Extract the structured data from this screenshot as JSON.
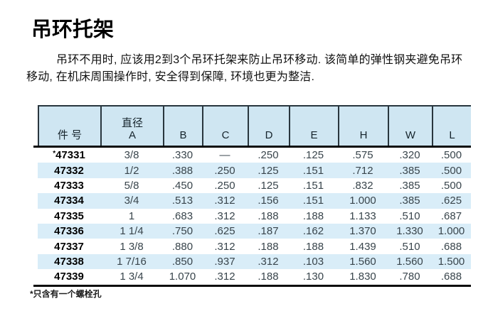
{
  "page": {
    "title": "吊环托架",
    "intro": "吊环不用时, 应该用2到3个吊环托架来防止吊环移动. 该简单的弹性钢夹避免吊环移动, 在机床周围操作时, 安全得到保障, 环境也更为整洁.",
    "footnote": "*只含有一个螺栓孔"
  },
  "colors": {
    "header_bg": "#cfe6f2",
    "stripe_bg": "#d9edf8",
    "rule_dark": "#29363e",
    "thick_rule": "#0b0b0b"
  },
  "table": {
    "columns": [
      {
        "lines": [
          "件 号"
        ]
      },
      {
        "lines": [
          "直径",
          "A"
        ]
      },
      {
        "lines": [
          "B"
        ]
      },
      {
        "lines": [
          "C"
        ]
      },
      {
        "lines": [
          "D"
        ]
      },
      {
        "lines": [
          "E"
        ]
      },
      {
        "lines": [
          "H"
        ]
      },
      {
        "lines": [
          "W"
        ]
      },
      {
        "lines": [
          "L"
        ]
      }
    ],
    "rows": [
      {
        "star": "*",
        "part": "47331",
        "values": [
          "3/8",
          ".330",
          "—",
          ".250",
          ".125",
          ".575",
          ".320",
          ".500"
        ]
      },
      {
        "star": "",
        "part": "47332",
        "values": [
          "1/2",
          ".388",
          ".250",
          ".125",
          ".151",
          ".712",
          ".385",
          ".500"
        ]
      },
      {
        "star": "",
        "part": "47333",
        "values": [
          "5/8",
          ".450",
          ".250",
          ".125",
          ".151",
          ".832",
          ".385",
          ".500"
        ]
      },
      {
        "star": "",
        "part": "47334",
        "values": [
          "3/4",
          ".513",
          ".312",
          ".156",
          ".151",
          "1.000",
          ".385",
          ".625"
        ]
      },
      {
        "star": "",
        "part": "47335",
        "values": [
          "1",
          ".683",
          ".312",
          ".188",
          ".188",
          "1.133",
          ".510",
          ".687"
        ]
      },
      {
        "star": "",
        "part": "47336",
        "values": [
          "1 1/4",
          ".750",
          ".625",
          ".187",
          ".162",
          "1.370",
          "1.330",
          "1.000"
        ]
      },
      {
        "star": "",
        "part": "47337",
        "values": [
          "1 3/8",
          ".880",
          ".312",
          ".188",
          ".188",
          "1.439",
          ".510",
          ".688"
        ]
      },
      {
        "star": "",
        "part": "47338",
        "values": [
          "1 7/16",
          ".850",
          ".937",
          ".312",
          ".103",
          "1.560",
          "1.560",
          "1.500"
        ]
      },
      {
        "star": "",
        "part": "47339",
        "values": [
          "1 3/4",
          "1.070",
          ".312",
          ".188",
          ".130",
          "1.830",
          ".780",
          ".688"
        ]
      }
    ]
  }
}
